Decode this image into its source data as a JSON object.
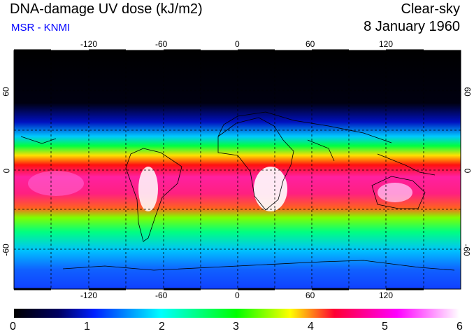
{
  "header": {
    "title": "DNA-damage UV dose (kJ/m2)",
    "subtitle": "MSR - KNMI",
    "mode": "Clear-sky",
    "date": "8 January 1960"
  },
  "colors": {
    "subtitle": "#0000ff"
  },
  "map": {
    "projection": "equirectangular",
    "lon_ticks": [
      "-120",
      "-60",
      "0",
      "60",
      "120"
    ],
    "lat_ticks": [
      "60",
      "0",
      "-60"
    ],
    "gridlines": "dashed every 30 degrees"
  },
  "colorbar": {
    "labels": [
      "0",
      "1",
      "2",
      "3",
      "4",
      "5",
      "6"
    ],
    "stops": [
      "#000000",
      "#0020ff",
      "#00ffff",
      "#00ff00",
      "#ffff00",
      "#ff0033",
      "#ff00ff",
      "#ffffff"
    ]
  }
}
